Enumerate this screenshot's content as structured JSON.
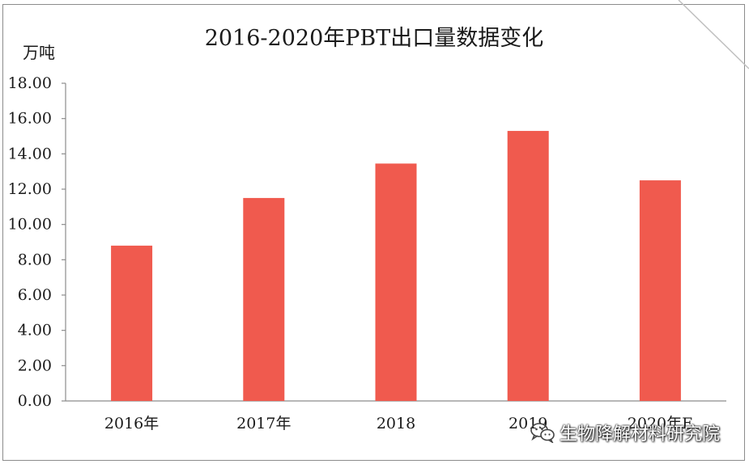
{
  "chart_data": {
    "type": "bar",
    "title": "2016-2020年PBT出口量数据变化",
    "ylabel": "万吨",
    "xlabel": "",
    "categories": [
      "2016年",
      "2017年",
      "2018",
      "2019",
      "2020年E"
    ],
    "values": [
      8.8,
      11.5,
      13.45,
      15.3,
      12.5
    ],
    "ylim": [
      0,
      18
    ],
    "ytick_step": 2,
    "ytick_labels": [
      "0.00",
      "2.00",
      "4.00",
      "6.00",
      "8.00",
      "10.00",
      "12.00",
      "14.00",
      "16.00",
      "18.00"
    ],
    "bar_color": "#f05a4e",
    "grid": false,
    "legend": "none"
  },
  "watermark": {
    "text": "生物降解材料研究院",
    "icon": "wechat-icon"
  }
}
